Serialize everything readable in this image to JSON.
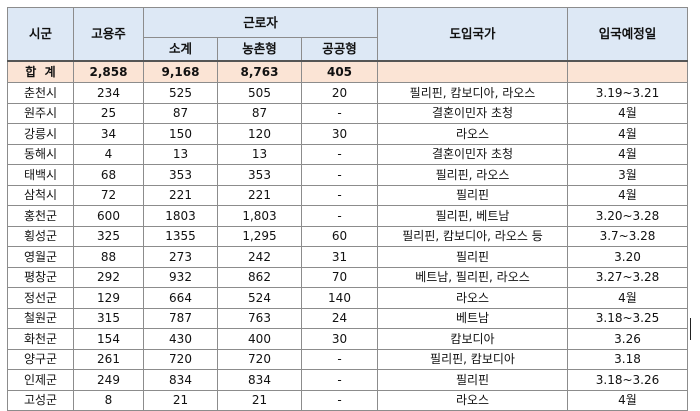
{
  "headers": {
    "region": "시군",
    "employers": "고용주",
    "workers_group": "근로자",
    "subtotal": "소계",
    "agri": "농촌형",
    "public": "공공형",
    "countries": "도입국가",
    "entry": "입국예정일"
  },
  "total": {
    "region": "합  계",
    "employers": "2,858",
    "subtotal": "9,168",
    "agri": "8,763",
    "public": "405",
    "countries": "",
    "entry": ""
  },
  "rows": [
    {
      "region": "춘천시",
      "employers": "234",
      "subtotal": "525",
      "agri": "505",
      "public": "20",
      "countries": "필리핀, 캄보디아, 라오스",
      "entry": "3.19~3.21"
    },
    {
      "region": "원주시",
      "employers": "25",
      "subtotal": "87",
      "agri": "87",
      "public": "-",
      "countries": "결혼이민자 초청",
      "entry": "4월"
    },
    {
      "region": "강릉시",
      "employers": "34",
      "subtotal": "150",
      "agri": "120",
      "public": "30",
      "countries": "라오스",
      "entry": "4월"
    },
    {
      "region": "동해시",
      "employers": "4",
      "subtotal": "13",
      "agri": "13",
      "public": "-",
      "countries": "결혼이민자 초청",
      "entry": "4월"
    },
    {
      "region": "태백시",
      "employers": "68",
      "subtotal": "353",
      "agri": "353",
      "public": "-",
      "countries": "필리핀, 라오스",
      "entry": "3월"
    },
    {
      "region": "삼척시",
      "employers": "72",
      "subtotal": "221",
      "agri": "221",
      "public": "-",
      "countries": "필리핀",
      "entry": "4월"
    },
    {
      "region": "홍천군",
      "employers": "600",
      "subtotal": "1803",
      "agri": "1,803",
      "public": "-",
      "countries": "필리핀, 베트남",
      "entry": "3.20~3.28"
    },
    {
      "region": "횡성군",
      "employers": "325",
      "subtotal": "1355",
      "agri": "1,295",
      "public": "60",
      "countries": "필리핀, 캄보디아, 라오스 등",
      "entry": "3.7~3.28"
    },
    {
      "region": "영월군",
      "employers": "88",
      "subtotal": "273",
      "agri": "242",
      "public": "31",
      "countries": "필리핀",
      "entry": "3.20"
    },
    {
      "region": "평창군",
      "employers": "292",
      "subtotal": "932",
      "agri": "862",
      "public": "70",
      "countries": "베트남, 필리핀, 라오스",
      "entry": "3.27~3.28"
    },
    {
      "region": "정선군",
      "employers": "129",
      "subtotal": "664",
      "agri": "524",
      "public": "140",
      "countries": "라오스",
      "entry": "4월"
    },
    {
      "region": "철원군",
      "employers": "315",
      "subtotal": "787",
      "agri": "763",
      "public": "24",
      "countries": "베트남",
      "entry": "3.18~3.25"
    },
    {
      "region": "화천군",
      "employers": "154",
      "subtotal": "430",
      "agri": "400",
      "public": "30",
      "countries": "캄보디아",
      "entry": "3.26"
    },
    {
      "region": "양구군",
      "employers": "261",
      "subtotal": "720",
      "agri": "720",
      "public": "-",
      "countries": "필리핀, 캄보디아",
      "entry": "3.18"
    },
    {
      "region": "인제군",
      "employers": "249",
      "subtotal": "834",
      "agri": "834",
      "public": "-",
      "countries": "필리핀",
      "entry": "3.18~3.26"
    },
    {
      "region": "고성군",
      "employers": "8",
      "subtotal": "21",
      "agri": "21",
      "public": "-",
      "countries": "라오스",
      "entry": "4월"
    }
  ]
}
